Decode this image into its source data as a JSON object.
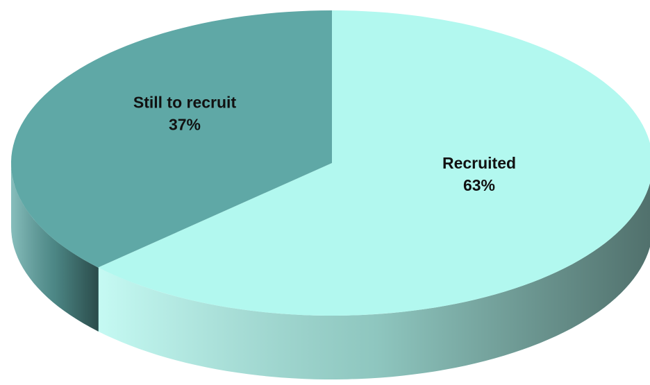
{
  "chart_data": {
    "type": "pie",
    "categories": [
      "Recruited",
      "Still to recruit"
    ],
    "values": [
      63,
      37
    ],
    "value_labels": [
      "63%",
      "37%"
    ],
    "colors": [
      "#b2f8ef",
      "#5fa8a6"
    ]
  }
}
